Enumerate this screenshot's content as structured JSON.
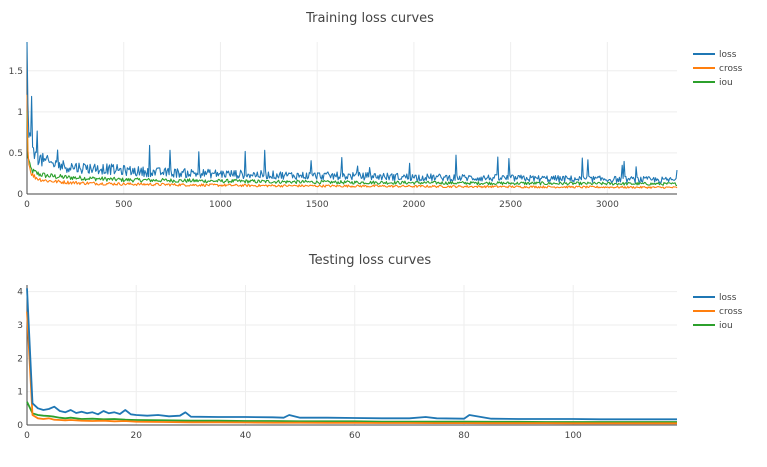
{
  "chart_data": [
    {
      "type": "line",
      "title": "Training loss curves",
      "xlabel": "",
      "ylabel": "",
      "xlim": [
        0,
        3360
      ],
      "ylim": [
        0,
        1.85
      ],
      "xticks": [
        0,
        500,
        1000,
        1500,
        2000,
        2500,
        3000
      ],
      "xtick_labels": [
        "0",
        "500",
        "1000",
        "1500",
        "2000",
        "2500",
        "3000"
      ],
      "yticks": [
        0,
        0.5,
        1,
        1.5
      ],
      "ytick_labels": [
        "0",
        "0.5",
        "1",
        "1.5"
      ],
      "grid": true,
      "legend_position": "right",
      "series": [
        {
          "name": "loss",
          "color": "#1f77b4",
          "x": [
            0,
            5,
            15,
            30,
            60,
            100,
            150,
            200,
            300,
            400,
            500,
            650,
            800,
            1000,
            1200,
            1400,
            1600,
            1800,
            2000,
            2200,
            2400,
            2600,
            2800,
            3000,
            3200,
            3360
          ],
          "values": [
            1.83,
            0.9,
            0.6,
            0.48,
            0.42,
            0.38,
            0.35,
            0.33,
            0.31,
            0.3,
            0.28,
            0.26,
            0.25,
            0.24,
            0.23,
            0.22,
            0.215,
            0.21,
            0.2,
            0.195,
            0.19,
            0.185,
            0.18,
            0.175,
            0.17,
            0.165
          ]
        },
        {
          "name": "cross",
          "color": "#ff7f0e",
          "x": [
            0,
            5,
            15,
            30,
            60,
            100,
            150,
            200,
            300,
            400,
            500,
            650,
            800,
            1000,
            1200,
            1400,
            1600,
            1800,
            2000,
            2200,
            2400,
            2600,
            2800,
            3000,
            3200,
            3360
          ],
          "values": [
            1.2,
            0.5,
            0.3,
            0.22,
            0.18,
            0.16,
            0.15,
            0.14,
            0.13,
            0.125,
            0.12,
            0.115,
            0.11,
            0.105,
            0.1,
            0.098,
            0.096,
            0.094,
            0.092,
            0.09,
            0.088,
            0.086,
            0.084,
            0.082,
            0.08,
            0.078
          ]
        },
        {
          "name": "iou",
          "color": "#2ca02c",
          "x": [
            0,
            5,
            15,
            30,
            60,
            100,
            150,
            200,
            300,
            400,
            500,
            650,
            800,
            1000,
            1200,
            1400,
            1600,
            1800,
            2000,
            2200,
            2400,
            2600,
            2800,
            3000,
            3200,
            3360
          ],
          "values": [
            0.95,
            0.45,
            0.32,
            0.27,
            0.24,
            0.22,
            0.21,
            0.2,
            0.19,
            0.18,
            0.17,
            0.165,
            0.16,
            0.155,
            0.15,
            0.145,
            0.14,
            0.138,
            0.135,
            0.132,
            0.13,
            0.128,
            0.126,
            0.124,
            0.122,
            0.12
          ]
        }
      ]
    },
    {
      "type": "line",
      "title": "Testing loss curves",
      "xlabel": "",
      "ylabel": "",
      "xlim": [
        0,
        119
      ],
      "ylim": [
        0,
        4.2
      ],
      "xticks": [
        0,
        20,
        40,
        60,
        80,
        100
      ],
      "xtick_labels": [
        "0",
        "20",
        "40",
        "60",
        "80",
        "100"
      ],
      "yticks": [
        0,
        1,
        2,
        3,
        4
      ],
      "ytick_labels": [
        "0",
        "1",
        "2",
        "3",
        "4"
      ],
      "grid": true,
      "legend_position": "right",
      "series": [
        {
          "name": "loss",
          "color": "#1f77b4",
          "x": [
            0,
            1,
            2,
            3,
            4,
            5,
            6,
            7,
            8,
            9,
            10,
            11,
            12,
            13,
            14,
            15,
            16,
            17,
            18,
            19,
            20,
            22,
            24,
            26,
            28,
            29,
            30,
            35,
            40,
            45,
            47,
            48,
            50,
            55,
            60,
            65,
            70,
            73,
            75,
            80,
            81,
            85,
            90,
            95,
            100,
            105,
            110,
            115,
            119
          ],
          "values": [
            4.1,
            0.65,
            0.5,
            0.45,
            0.48,
            0.55,
            0.42,
            0.38,
            0.45,
            0.36,
            0.4,
            0.35,
            0.38,
            0.32,
            0.42,
            0.35,
            0.38,
            0.33,
            0.45,
            0.32,
            0.3,
            0.28,
            0.3,
            0.26,
            0.28,
            0.38,
            0.25,
            0.24,
            0.24,
            0.23,
            0.22,
            0.3,
            0.22,
            0.22,
            0.21,
            0.2,
            0.2,
            0.24,
            0.2,
            0.19,
            0.3,
            0.19,
            0.18,
            0.18,
            0.18,
            0.17,
            0.17,
            0.17,
            0.17
          ]
        },
        {
          "name": "cross",
          "color": "#ff7f0e",
          "x": [
            0,
            1,
            2,
            3,
            4,
            5,
            6,
            7,
            8,
            10,
            12,
            14,
            16,
            18,
            20,
            25,
            30,
            35,
            40,
            45,
            50,
            55,
            60,
            65,
            70,
            75,
            80,
            85,
            90,
            95,
            100,
            105,
            110,
            115,
            119
          ],
          "values": [
            3.4,
            0.3,
            0.2,
            0.18,
            0.2,
            0.16,
            0.15,
            0.14,
            0.15,
            0.13,
            0.12,
            0.13,
            0.11,
            0.12,
            0.1,
            0.09,
            0.08,
            0.08,
            0.075,
            0.07,
            0.07,
            0.065,
            0.065,
            0.06,
            0.06,
            0.058,
            0.056,
            0.055,
            0.054,
            0.053,
            0.052,
            0.051,
            0.05,
            0.05,
            0.05
          ]
        },
        {
          "name": "iou",
          "color": "#2ca02c",
          "x": [
            0,
            1,
            2,
            3,
            4,
            5,
            6,
            7,
            8,
            10,
            12,
            14,
            16,
            18,
            20,
            25,
            30,
            35,
            40,
            45,
            50,
            55,
            60,
            65,
            70,
            75,
            80,
            85,
            90,
            95,
            100,
            105,
            110,
            115,
            119
          ],
          "values": [
            0.7,
            0.35,
            0.3,
            0.28,
            0.27,
            0.25,
            0.22,
            0.2,
            0.22,
            0.18,
            0.19,
            0.17,
            0.18,
            0.16,
            0.15,
            0.14,
            0.13,
            0.13,
            0.12,
            0.12,
            0.11,
            0.11,
            0.11,
            0.1,
            0.1,
            0.1,
            0.1,
            0.095,
            0.095,
            0.09,
            0.09,
            0.09,
            0.09,
            0.09,
            0.09
          ]
        }
      ]
    }
  ]
}
